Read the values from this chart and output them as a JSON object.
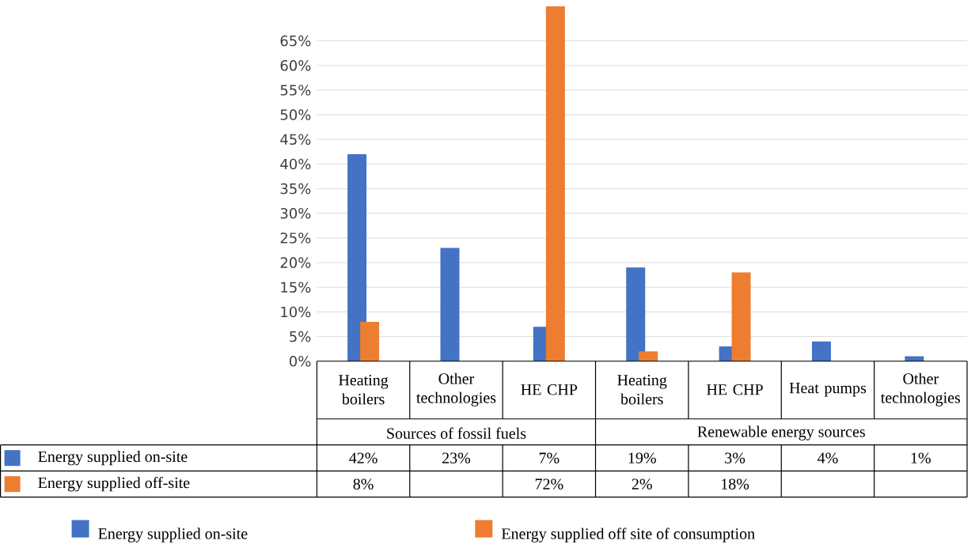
{
  "chart_data": {
    "type": "bar",
    "categories": [
      "Heating boilers",
      "Other technologies",
      "HE CHP",
      "Heating boilers",
      "HE CHP",
      "Heat pumps",
      "Other technologies"
    ],
    "series": [
      {
        "name": "Energy supplied on-site",
        "color": "#4472c4",
        "values": [
          42,
          23,
          7,
          19,
          3,
          4,
          1
        ],
        "value_labels": [
          "42%",
          "23%",
          "7%",
          "19%",
          "3%",
          "4%",
          "1%"
        ]
      },
      {
        "name": "Energy supplied off site of consumption",
        "color": "#ed7d31",
        "values": [
          8,
          null,
          72,
          2,
          18,
          null,
          null
        ],
        "value_labels": [
          "8%",
          null,
          "72%",
          "2%",
          "18%",
          null,
          null
        ]
      }
    ],
    "ylim": [
      0,
      72
    ],
    "yticks": [
      {
        "value": 0,
        "label": "0%"
      },
      {
        "value": 5,
        "label": "5%"
      },
      {
        "value": 10,
        "label": "10%"
      },
      {
        "value": 15,
        "label": "15%"
      },
      {
        "value": 20,
        "label": "20%"
      },
      {
        "value": 25,
        "label": "25%"
      },
      {
        "value": 30,
        "label": "30%"
      },
      {
        "value": 35,
        "label": "35%"
      },
      {
        "value": 40,
        "label": "40%"
      },
      {
        "value": 45,
        "label": "45%"
      },
      {
        "value": 50,
        "label": "50%"
      },
      {
        "value": 55,
        "label": "55%"
      },
      {
        "value": 60,
        "label": "60%"
      },
      {
        "value": 65,
        "label": "65%"
      }
    ],
    "annotations": [
      "Sources of fossil fuels",
      "Renewable energy sources",
      "Energy supplied on-site",
      "Energy supplied off-site"
    ],
    "grid": "y",
    "legend": "bottom"
  }
}
